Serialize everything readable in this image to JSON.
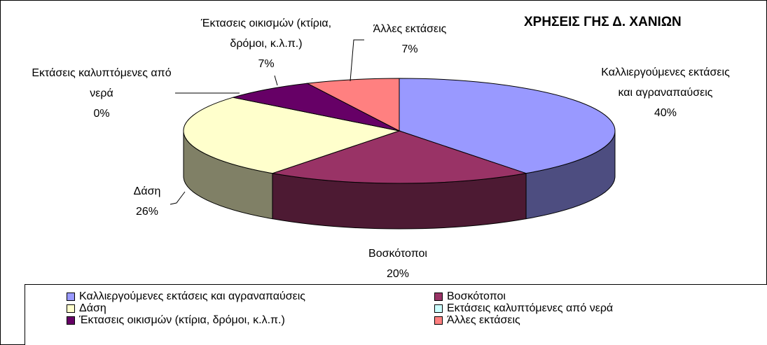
{
  "chart_data": {
    "type": "pie",
    "title": "ΧΡΗΣΕΙΣ ΓΗΣ Δ. ΧΑΝΙΩΝ",
    "categories": [
      "Καλλιεργούμενες εκτάσεις και αγραναπαύσεις",
      "Βοσκότοποι",
      "Δάση",
      "Εκτάσεις καλυπτόμενες από νερά",
      "Έκτασεις οικισμών (κτίρια, δρόμοι, κ.λ.π.)",
      "Άλλες εκτάσεις"
    ],
    "values": [
      40,
      20,
      26,
      0,
      7,
      7
    ],
    "value_labels": [
      "40%",
      "20%",
      "26%",
      "0%",
      "7%",
      "7%"
    ],
    "colors": [
      "#9999ff",
      "#993366",
      "#ffffcc",
      "#ccffff",
      "#660066",
      "#ff8080"
    ],
    "three_d": true,
    "legend": "bottom"
  }
}
